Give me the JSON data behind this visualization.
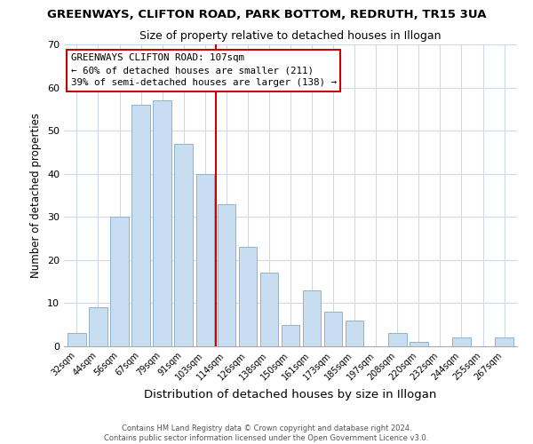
{
  "title": "GREENWAYS, CLIFTON ROAD, PARK BOTTOM, REDRUTH, TR15 3UA",
  "subtitle": "Size of property relative to detached houses in Illogan",
  "xlabel": "Distribution of detached houses by size in Illogan",
  "ylabel": "Number of detached properties",
  "bar_labels": [
    "32sqm",
    "44sqm",
    "56sqm",
    "67sqm",
    "79sqm",
    "91sqm",
    "103sqm",
    "114sqm",
    "126sqm",
    "138sqm",
    "150sqm",
    "161sqm",
    "173sqm",
    "185sqm",
    "197sqm",
    "208sqm",
    "220sqm",
    "232sqm",
    "244sqm",
    "255sqm",
    "267sqm"
  ],
  "bar_values": [
    3,
    9,
    30,
    56,
    57,
    47,
    40,
    33,
    23,
    17,
    5,
    13,
    8,
    6,
    0,
    3,
    1,
    0,
    2,
    0,
    2
  ],
  "bar_color": "#c8ddf0",
  "bar_edge_color": "#8ab4d4",
  "vline_x": 6.5,
  "vline_color": "#cc0000",
  "annotation_title": "GREENWAYS CLIFTON ROAD: 107sqm",
  "annotation_line1": "← 60% of detached houses are smaller (211)",
  "annotation_line2": "39% of semi-detached houses are larger (138) →",
  "annotation_box_color": "#ffffff",
  "annotation_box_edge": "#cc0000",
  "ylim": [
    0,
    70
  ],
  "yticks": [
    0,
    10,
    20,
    30,
    40,
    50,
    60,
    70
  ],
  "footer1": "Contains HM Land Registry data © Crown copyright and database right 2024.",
  "footer2": "Contains public sector information licensed under the Open Government Licence v3.0.",
  "background_color": "#ffffff",
  "grid_color": "#d0d8e8"
}
